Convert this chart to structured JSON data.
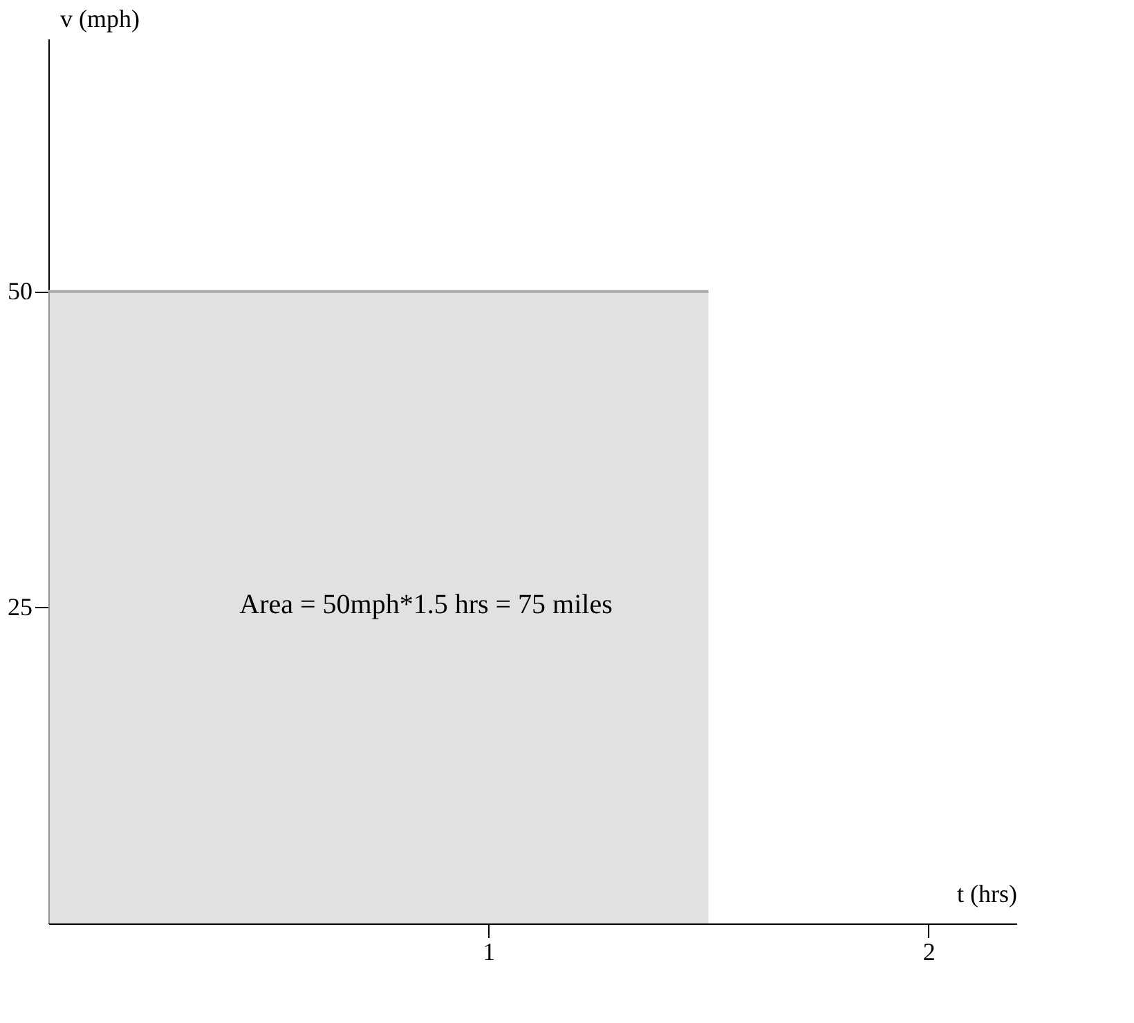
{
  "chart_data": {
    "type": "area",
    "xlabel": "t (hrs)",
    "ylabel": "v (mph)",
    "x": [
      0,
      1.5
    ],
    "values": [
      50,
      50
    ],
    "color": "#d4d4d4",
    "xlim": [
      0,
      2.2
    ],
    "ylim": [
      0,
      70
    ],
    "xticks": [
      1,
      2
    ],
    "yticks": [
      25,
      50
    ],
    "grid": false,
    "annotations": [
      "Area = 50mph*1.5 hrs = 75 miles"
    ]
  }
}
